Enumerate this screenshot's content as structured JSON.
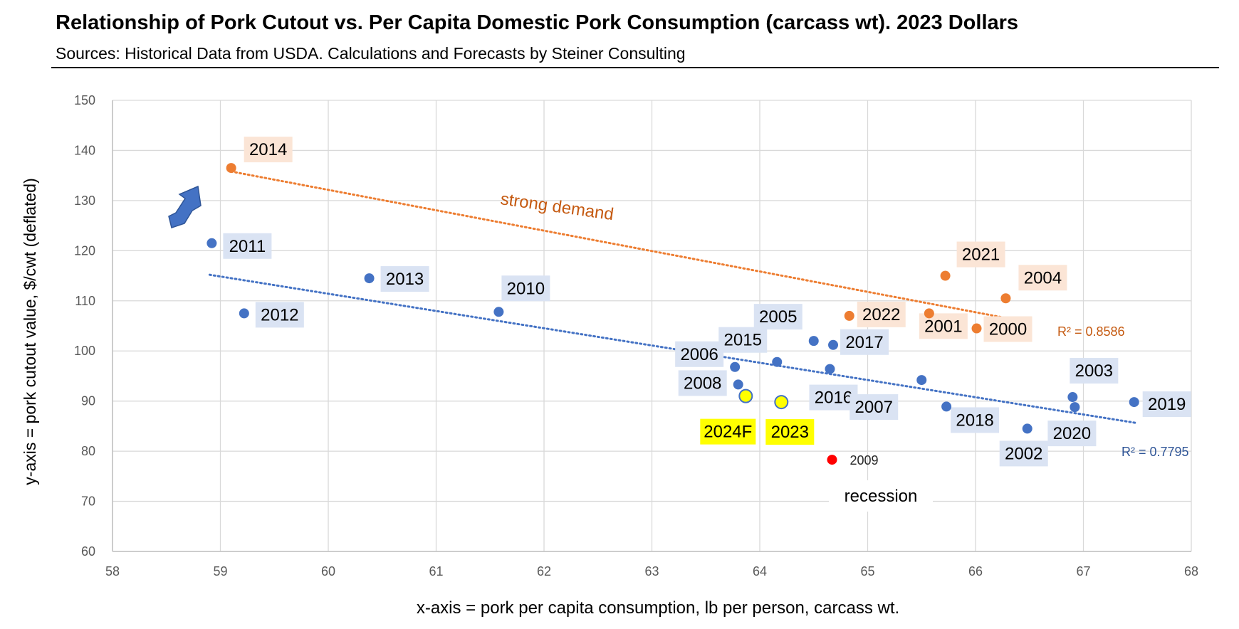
{
  "title": "Relationship of Pork Cutout vs. Per Capita Domestic Pork Consumption (carcass wt).  2023 Dollars",
  "subtitle": "Sources:  Historical Data from USDA.  Calculations and Forecasts by Steiner Consulting",
  "chart_data": {
    "type": "scatter",
    "xlabel": "x-axis = pork per capita consumption, lb per person, carcass wt.",
    "ylabel": "y-axis = pork cutout value, $/cwt (deflated)",
    "xlim": [
      58,
      68
    ],
    "ylim": [
      60,
      150
    ],
    "xticks": [
      "58",
      "59",
      "60",
      "61",
      "62",
      "63",
      "64",
      "65",
      "66",
      "67",
      "68"
    ],
    "yticks": [
      "60",
      "70",
      "80",
      "90",
      "100",
      "110",
      "120",
      "130",
      "140",
      "150"
    ],
    "grid": true,
    "colors": {
      "orange": "#ED7D31",
      "blue": "#4472C4",
      "highlight": "#FFFF00",
      "red": "#FF0000",
      "orange_label_bg": "#FBE5D6",
      "blue_label_bg": "#DAE3F3"
    },
    "series": [
      {
        "name": "strong demand",
        "color": "#ED7D31",
        "r2": "R² = 0.8586",
        "trend": [
          [
            59.1,
            135.8
          ],
          [
            66.3,
            106.5
          ]
        ],
        "points": [
          {
            "label": "2014",
            "x": 59.1,
            "y": 136.5
          },
          {
            "label": "2021",
            "x": 65.72,
            "y": 115.0
          },
          {
            "label": "2004",
            "x": 66.28,
            "y": 110.5
          },
          {
            "label": "2022",
            "x": 64.83,
            "y": 107.0
          },
          {
            "label": "2001",
            "x": 65.57,
            "y": 107.5
          },
          {
            "label": "2000",
            "x": 66.01,
            "y": 104.5
          }
        ]
      },
      {
        "name": "",
        "color": "#4472C4",
        "r2": "R² = 0.7795",
        "trend": [
          [
            58.9,
            115.2
          ],
          [
            67.5,
            85.6
          ]
        ],
        "points": [
          {
            "label": "2011",
            "x": 58.92,
            "y": 121.5
          },
          {
            "label": "2012",
            "x": 59.22,
            "y": 107.5
          },
          {
            "label": "2013",
            "x": 60.38,
            "y": 114.5
          },
          {
            "label": "2010",
            "x": 61.58,
            "y": 107.8
          },
          {
            "label": "2005",
            "x": 64.5,
            "y": 102.0
          },
          {
            "label": "2017",
            "x": 64.68,
            "y": 101.2
          },
          {
            "label": "2015",
            "x": 64.16,
            "y": 97.8
          },
          {
            "label": "2006",
            "x": 63.77,
            "y": 96.8
          },
          {
            "label": "2016",
            "x": 64.65,
            "y": 96.4
          },
          {
            "label": "2008",
            "x": 63.8,
            "y": 93.3
          },
          {
            "label": "2007",
            "x": 65.5,
            "y": 94.2
          },
          {
            "label": "2018",
            "x": 65.73,
            "y": 88.9
          },
          {
            "label": "2003",
            "x": 66.9,
            "y": 90.8
          },
          {
            "label": "2020",
            "x": 66.92,
            "y": 88.8
          },
          {
            "label": "2002",
            "x": 66.48,
            "y": 84.5
          },
          {
            "label": "2019",
            "x": 67.47,
            "y": 89.8
          }
        ]
      },
      {
        "name": "",
        "color": "#FFFF00",
        "points": [
          {
            "label": "2024F",
            "x": 63.87,
            "y": 91.0
          },
          {
            "label": "2023",
            "x": 64.2,
            "y": 89.8
          }
        ]
      },
      {
        "name": "",
        "color": "#FF0000",
        "points": [
          {
            "label": "2009",
            "x": 64.67,
            "y": 78.3
          }
        ]
      }
    ],
    "annotations": {
      "strong_demand": "strong demand",
      "recession": "recession"
    }
  }
}
